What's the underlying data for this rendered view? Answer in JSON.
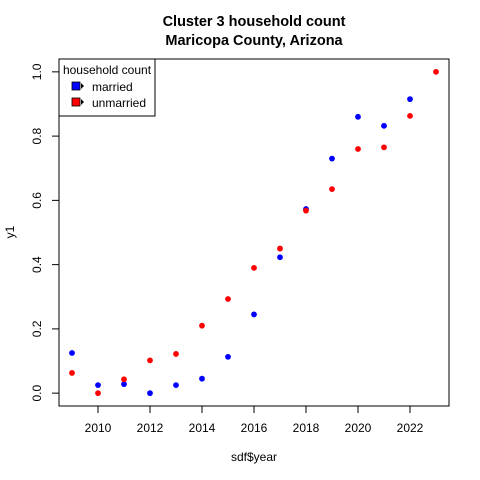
{
  "chart_data": {
    "type": "scatter",
    "title": "Cluster 3 household count",
    "subtitle": "Maricopa County, Arizona",
    "xlabel": "sdf$year",
    "ylabel": "y1",
    "xlim": [
      2008.5,
      2023.5
    ],
    "ylim": [
      -0.04,
      1.04
    ],
    "xticks": [
      2010,
      2012,
      2014,
      2016,
      2018,
      2020,
      2022
    ],
    "yticks": [
      0.0,
      0.2,
      0.4,
      0.6,
      0.8,
      1.0
    ],
    "xtick_labels": [
      "2010",
      "2012",
      "2014",
      "2016",
      "2018",
      "2020",
      "2022"
    ],
    "ytick_labels": [
      "0.0",
      "0.2",
      "0.4",
      "0.6",
      "0.8",
      "1.0"
    ],
    "grid": false,
    "legend": {
      "title": "household count",
      "position": "top-left",
      "entries": [
        "married",
        "unmarried"
      ]
    },
    "series": [
      {
        "name": "married",
        "color": "#0000ff",
        "x": [
          2009,
          2010,
          2011,
          2012,
          2013,
          2014,
          2015,
          2016,
          2017,
          2018,
          2019,
          2020,
          2021,
          2022
        ],
        "y": [
          0.125,
          0.025,
          0.028,
          0.0,
          0.025,
          0.045,
          0.113,
          0.245,
          0.423,
          0.573,
          0.73,
          0.86,
          0.832,
          0.915
        ]
      },
      {
        "name": "unmarried",
        "color": "#ff0000",
        "x": [
          2009,
          2010,
          2011,
          2012,
          2013,
          2014,
          2015,
          2016,
          2017,
          2018,
          2019,
          2020,
          2021,
          2022,
          2023
        ],
        "y": [
          0.063,
          0.0,
          0.043,
          0.102,
          0.122,
          0.21,
          0.293,
          0.39,
          0.45,
          0.568,
          0.635,
          0.76,
          0.765,
          0.863,
          1.0
        ]
      }
    ]
  }
}
